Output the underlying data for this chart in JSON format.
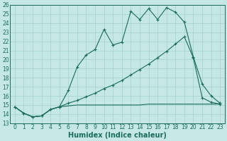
{
  "xlabel": "Humidex (Indice chaleur)",
  "bg_color": "#c5e8e5",
  "grid_color": "#a8d5d0",
  "line_color": "#1a6b5a",
  "xlim": [
    -0.5,
    23.5
  ],
  "ylim": [
    13,
    26
  ],
  "xticks": [
    0,
    1,
    2,
    3,
    4,
    5,
    6,
    7,
    8,
    9,
    10,
    11,
    12,
    13,
    14,
    15,
    16,
    17,
    18,
    19,
    20,
    21,
    22,
    23
  ],
  "yticks": [
    13,
    14,
    15,
    16,
    17,
    18,
    19,
    20,
    21,
    22,
    23,
    24,
    25,
    26
  ],
  "series1_x": [
    0,
    1,
    2,
    3,
    4,
    5,
    6,
    7,
    8,
    9,
    10,
    11,
    12,
    13,
    14,
    15,
    16,
    17,
    18,
    19,
    20,
    21,
    22,
    23
  ],
  "series1_y": [
    14.8,
    14.1,
    13.7,
    13.8,
    14.5,
    14.8,
    16.6,
    19.2,
    20.5,
    21.1,
    23.3,
    21.6,
    21.9,
    25.3,
    24.4,
    25.6,
    24.4,
    25.7,
    25.2,
    24.1,
    20.3,
    17.3,
    16.0,
    15.2
  ],
  "series2_x": [
    0,
    1,
    2,
    3,
    4,
    5,
    6,
    7,
    8,
    9,
    10,
    11,
    12,
    13,
    14,
    15,
    16,
    17,
    18,
    19,
    20,
    21,
    22,
    23
  ],
  "series2_y": [
    14.8,
    14.1,
    13.7,
    13.8,
    14.5,
    14.8,
    15.2,
    15.5,
    15.9,
    16.3,
    16.8,
    17.2,
    17.7,
    18.3,
    18.9,
    19.5,
    20.2,
    20.9,
    21.7,
    22.5,
    20.2,
    15.8,
    15.3,
    15.1
  ],
  "series3_x": [
    0,
    1,
    2,
    3,
    4,
    5,
    6,
    7,
    8,
    9,
    10,
    11,
    12,
    13,
    14,
    15,
    16,
    17,
    18,
    19,
    20,
    21,
    22,
    23
  ],
  "series3_y": [
    14.8,
    14.1,
    13.7,
    13.8,
    14.5,
    14.8,
    14.9,
    15.0,
    15.0,
    15.0,
    15.0,
    15.0,
    15.0,
    15.0,
    15.0,
    15.1,
    15.1,
    15.1,
    15.1,
    15.1,
    15.1,
    15.1,
    15.1,
    15.1
  ],
  "fontsize_xlabel": 7,
  "fontsize_tick": 5.5
}
